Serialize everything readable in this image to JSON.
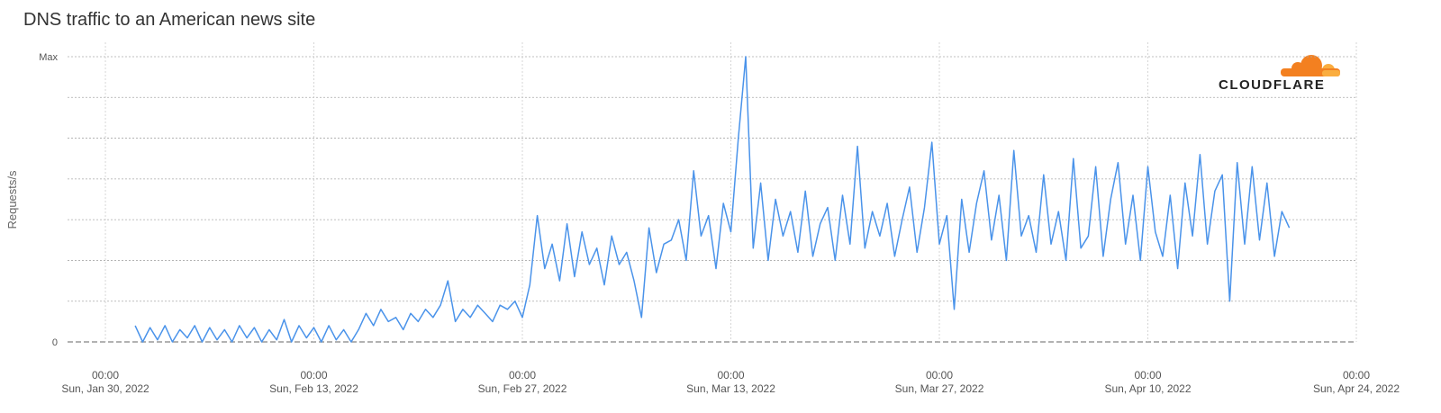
{
  "chart_data": {
    "type": "line",
    "title": "DNS traffic to an American news site",
    "y_label": "Requests/s",
    "logo_text": "CLOUDFLARE",
    "xlim": [
      "2022-01-27T11:00",
      "2022-04-24T00:00"
    ],
    "xticks": [
      {
        "value": "2022-01-30T00:00",
        "label": [
          "00:00",
          "Sun, Jan 30, 2022"
        ]
      },
      {
        "value": "2022-02-13T00:00",
        "label": [
          "00:00",
          "Sun, Feb 13, 2022"
        ]
      },
      {
        "value": "2022-02-27T00:00",
        "label": [
          "00:00",
          "Sun, Feb 27, 2022"
        ]
      },
      {
        "value": "2022-03-13T00:00",
        "label": [
          "00:00",
          "Sun, Mar 13, 2022"
        ]
      },
      {
        "value": "2022-03-27T00:00",
        "label": [
          "00:00",
          "Sun, Mar 27, 2022"
        ]
      },
      {
        "value": "2022-04-10T00:00",
        "label": [
          "00:00",
          "Sun, Apr 10, 2022"
        ]
      },
      {
        "value": "2022-04-24T00:00",
        "label": [
          "00:00",
          "Sun, Apr 24, 2022"
        ]
      }
    ],
    "ylim": [
      0,
      7
    ],
    "yticks": [
      0,
      {
        "value": 7,
        "label": "Max"
      }
    ],
    "ygrid": [
      1,
      2,
      3,
      4,
      5,
      6
    ],
    "grid": true,
    "series": [
      {
        "name": "Requests/s",
        "color": "#4a93ea",
        "x": [
          "2022-02-01T00:00",
          "2022-02-01T12:00",
          "2022-02-02T00:00",
          "2022-02-02T12:00",
          "2022-02-03T00:00",
          "2022-02-03T12:00",
          "2022-02-04T00:00",
          "2022-02-04T12:00",
          "2022-02-05T00:00",
          "2022-02-05T12:00",
          "2022-02-06T00:00",
          "2022-02-06T12:00",
          "2022-02-07T00:00",
          "2022-02-07T12:00",
          "2022-02-08T00:00",
          "2022-02-08T12:00",
          "2022-02-09T00:00",
          "2022-02-09T12:00",
          "2022-02-10T00:00",
          "2022-02-10T12:00",
          "2022-02-11T00:00",
          "2022-02-11T12:00",
          "2022-02-12T00:00",
          "2022-02-12T12:00",
          "2022-02-13T00:00",
          "2022-02-13T12:00",
          "2022-02-14T00:00",
          "2022-02-14T12:00",
          "2022-02-15T00:00",
          "2022-02-15T12:00",
          "2022-02-16T00:00",
          "2022-02-16T12:00",
          "2022-02-17T00:00",
          "2022-02-17T12:00",
          "2022-02-18T00:00",
          "2022-02-18T12:00",
          "2022-02-19T00:00",
          "2022-02-19T12:00",
          "2022-02-20T00:00",
          "2022-02-20T12:00",
          "2022-02-21T00:00",
          "2022-02-21T12:00",
          "2022-02-22T00:00",
          "2022-02-22T12:00",
          "2022-02-23T00:00",
          "2022-02-23T12:00",
          "2022-02-24T00:00",
          "2022-02-24T12:00",
          "2022-02-25T00:00",
          "2022-02-25T12:00",
          "2022-02-26T00:00",
          "2022-02-26T12:00",
          "2022-02-27T00:00",
          "2022-02-27T12:00",
          "2022-02-28T00:00",
          "2022-02-28T12:00",
          "2022-03-01T00:00",
          "2022-03-01T12:00",
          "2022-03-02T00:00",
          "2022-03-02T12:00",
          "2022-03-03T00:00",
          "2022-03-03T12:00",
          "2022-03-04T00:00",
          "2022-03-04T12:00",
          "2022-03-05T00:00",
          "2022-03-05T12:00",
          "2022-03-06T00:00",
          "2022-03-06T12:00",
          "2022-03-07T00:00",
          "2022-03-07T12:00",
          "2022-03-08T00:00",
          "2022-03-08T12:00",
          "2022-03-09T00:00",
          "2022-03-09T12:00",
          "2022-03-10T00:00",
          "2022-03-10T12:00",
          "2022-03-11T00:00",
          "2022-03-11T12:00",
          "2022-03-12T00:00",
          "2022-03-12T12:00",
          "2022-03-13T00:00",
          "2022-03-13T12:00",
          "2022-03-14T00:00",
          "2022-03-14T12:00",
          "2022-03-15T00:00",
          "2022-03-15T12:00",
          "2022-03-16T00:00",
          "2022-03-16T12:00",
          "2022-03-17T00:00",
          "2022-03-17T12:00",
          "2022-03-18T00:00",
          "2022-03-18T12:00",
          "2022-03-19T00:00",
          "2022-03-19T12:00",
          "2022-03-20T00:00",
          "2022-03-20T12:00",
          "2022-03-21T00:00",
          "2022-03-21T12:00",
          "2022-03-22T00:00",
          "2022-03-22T12:00",
          "2022-03-23T00:00",
          "2022-03-23T12:00",
          "2022-03-24T00:00",
          "2022-03-24T12:00",
          "2022-03-25T00:00",
          "2022-03-25T12:00",
          "2022-03-26T00:00",
          "2022-03-26T12:00",
          "2022-03-27T00:00",
          "2022-03-27T12:00",
          "2022-03-28T00:00",
          "2022-03-28T12:00",
          "2022-03-29T00:00",
          "2022-03-29T12:00",
          "2022-03-30T00:00",
          "2022-03-30T12:00",
          "2022-03-31T00:00",
          "2022-03-31T12:00",
          "2022-04-01T00:00",
          "2022-04-01T12:00",
          "2022-04-02T00:00",
          "2022-04-02T12:00",
          "2022-04-03T00:00",
          "2022-04-03T12:00",
          "2022-04-04T00:00",
          "2022-04-04T12:00",
          "2022-04-05T00:00",
          "2022-04-05T12:00",
          "2022-04-06T00:00",
          "2022-04-06T12:00",
          "2022-04-07T00:00",
          "2022-04-07T12:00",
          "2022-04-08T00:00",
          "2022-04-08T12:00",
          "2022-04-09T00:00",
          "2022-04-09T12:00",
          "2022-04-10T00:00",
          "2022-04-10T12:00",
          "2022-04-11T00:00",
          "2022-04-11T12:00",
          "2022-04-12T00:00",
          "2022-04-12T12:00",
          "2022-04-13T00:00",
          "2022-04-13T12:00",
          "2022-04-14T00:00",
          "2022-04-14T12:00",
          "2022-04-15T00:00",
          "2022-04-15T12:00",
          "2022-04-16T00:00",
          "2022-04-16T12:00",
          "2022-04-17T00:00",
          "2022-04-17T12:00",
          "2022-04-18T00:00",
          "2022-04-18T12:00",
          "2022-04-19T00:00",
          "2022-04-19T12:00"
        ],
        "values": [
          0.4,
          0,
          0.35,
          0.05,
          0.4,
          0,
          0.3,
          0.1,
          0.4,
          0,
          0.35,
          0.05,
          0.3,
          0,
          0.4,
          0.1,
          0.35,
          0,
          0.3,
          0.05,
          0.55,
          0,
          0.4,
          0.1,
          0.35,
          0,
          0.4,
          0.05,
          0.3,
          0,
          0.3,
          0.7,
          0.4,
          0.8,
          0.5,
          0.6,
          0.3,
          0.7,
          0.5,
          0.8,
          0.6,
          0.9,
          1.5,
          0.5,
          0.8,
          0.6,
          0.9,
          0.7,
          0.5,
          0.9,
          0.8,
          1.0,
          0.6,
          1.4,
          3.1,
          1.8,
          2.4,
          1.5,
          2.9,
          1.6,
          2.7,
          1.9,
          2.3,
          1.4,
          2.6,
          1.9,
          2.2,
          1.5,
          0.6,
          2.8,
          1.7,
          2.4,
          2.5,
          3.0,
          2.0,
          4.2,
          2.6,
          3.1,
          1.8,
          3.4,
          2.7,
          5.0,
          7.0,
          2.3,
          3.9,
          2.0,
          3.5,
          2.6,
          3.2,
          2.2,
          3.7,
          2.1,
          2.9,
          3.3,
          2.0,
          3.6,
          2.4,
          4.8,
          2.3,
          3.2,
          2.6,
          3.4,
          2.1,
          3.0,
          3.8,
          2.2,
          3.3,
          4.9,
          2.4,
          3.1,
          0.8,
          3.5,
          2.2,
          3.4,
          4.2,
          2.5,
          3.6,
          2.0,
          4.7,
          2.6,
          3.1,
          2.2,
          4.1,
          2.4,
          3.2,
          2.0,
          4.5,
          2.3,
          2.6,
          4.3,
          2.1,
          3.5,
          4.4,
          2.4,
          3.6,
          2.0,
          4.3,
          2.7,
          2.1,
          3.6,
          1.8,
          3.9,
          2.6,
          4.6,
          2.4,
          3.7,
          4.1,
          1.0,
          4.4,
          2.4,
          4.3,
          2.5,
          3.9,
          2.1,
          3.2,
          2.8
        ]
      }
    ]
  }
}
